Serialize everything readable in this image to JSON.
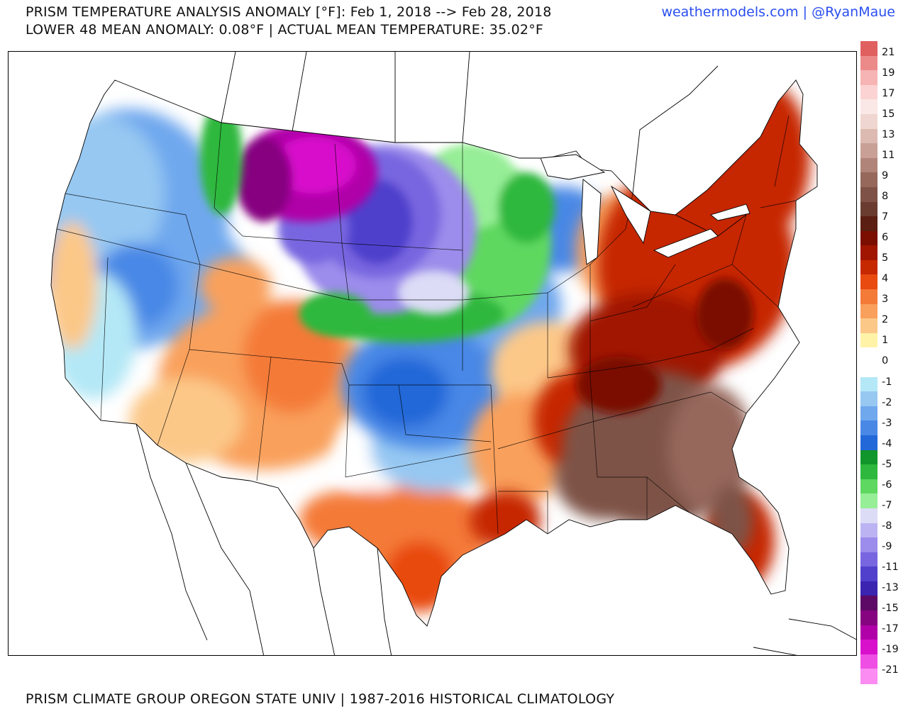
{
  "header": {
    "title_line1": "PRISM TEMPERATURE ANALYSIS ANOMALY [°F]: Feb 1, 2018 --> Feb 28, 2018",
    "title_line2": "LOWER 48 MEAN ANOMALY: 0.08°F | ACTUAL MEAN TEMPERATURE: 35.02°F",
    "credit": "weathermodels.com | @RyanMaue"
  },
  "footer": {
    "source": "PRISM CLIMATE GROUP OREGON STATE UNIV | 1987-2016 HISTORICAL CLIMATOLOGY"
  },
  "legend": {
    "unit": "°F",
    "bins": [
      {
        "color": "#e06060"
      },
      {
        "color": "#ec8a8a"
      },
      {
        "color": "#f6b4b4"
      },
      {
        "color": "#fbd3d3"
      },
      {
        "color": "#fae8e6"
      },
      {
        "color": "#f0d6d0"
      },
      {
        "color": "#dcbab2"
      },
      {
        "color": "#c8a096"
      },
      {
        "color": "#b08478"
      },
      {
        "color": "#96685c"
      },
      {
        "color": "#7e5246"
      },
      {
        "color": "#6a3c30"
      },
      {
        "color": "#5a1e12"
      },
      {
        "color": "#7a0e00"
      },
      {
        "color": "#a01600"
      },
      {
        "color": "#c62800"
      },
      {
        "color": "#e84a10"
      },
      {
        "color": "#f47a38"
      },
      {
        "color": "#f9a05c"
      },
      {
        "color": "#fcc888"
      },
      {
        "color": "#fff3a8"
      },
      {
        "color": "#ffffff"
      },
      {
        "color": "#ffffff"
      },
      {
        "color": "#b4e8f6"
      },
      {
        "color": "#96c8f2"
      },
      {
        "color": "#70a8ee"
      },
      {
        "color": "#4a88e6"
      },
      {
        "color": "#2268d8"
      },
      {
        "color": "#10962a"
      },
      {
        "color": "#2eb83e"
      },
      {
        "color": "#5ed860"
      },
      {
        "color": "#96ee96"
      },
      {
        "color": "#dcdcf6"
      },
      {
        "color": "#bcb4f2"
      },
      {
        "color": "#9c8ceb"
      },
      {
        "color": "#7866e0"
      },
      {
        "color": "#5040cc"
      },
      {
        "color": "#3a24b0"
      },
      {
        "color": "#5c0a66"
      },
      {
        "color": "#860480"
      },
      {
        "color": "#b000a8"
      },
      {
        "color": "#d810cc"
      },
      {
        "color": "#ef4ee4"
      },
      {
        "color": "#fb8cf2"
      }
    ],
    "labels": [
      "21",
      "19",
      "17",
      "15",
      "13",
      "11",
      "9",
      "8",
      "7",
      "6",
      "5",
      "4",
      "3",
      "2",
      "1",
      "0",
      "-1",
      "-2",
      "-3",
      "-4",
      "-5",
      "-6",
      "-7",
      "-8",
      "-9",
      "-11",
      "-13",
      "-15",
      "-17",
      "-19",
      "-21"
    ]
  },
  "anomaly_regions": [
    {
      "name": "eastern-warm-anomaly",
      "value": "6",
      "color": "#c62800"
    },
    {
      "name": "southeast-strong-warm",
      "value": "10",
      "color": "#7e5246"
    },
    {
      "name": "northern-plains-cold",
      "value": "-11",
      "color": "#5040cc"
    },
    {
      "name": "montana-extreme-cold",
      "value": "-15",
      "color": "#860480"
    },
    {
      "name": "upper-midwest-cold",
      "value": "-5",
      "color": "#2eb83e"
    },
    {
      "name": "pacific-northwest-cool",
      "value": "-2",
      "color": "#70a8ee"
    },
    {
      "name": "southwest-warm",
      "value": "3",
      "color": "#f9a05c"
    },
    {
      "name": "texas-warm",
      "value": "4",
      "color": "#f47a38"
    }
  ]
}
